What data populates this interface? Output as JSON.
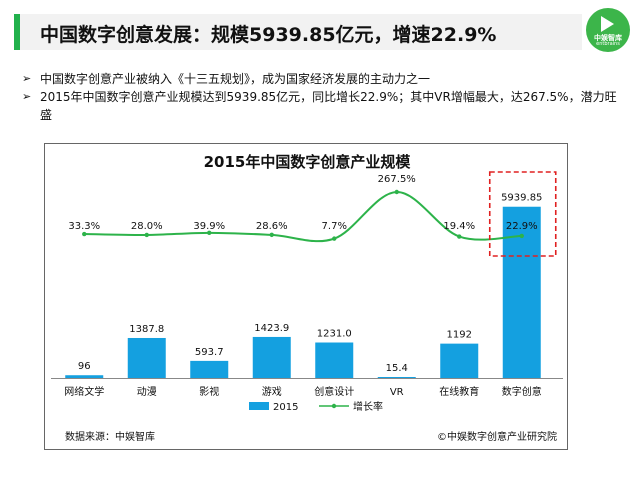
{
  "header": {
    "title": "中国数字创意发展：规模5939.85亿元，增速22.9%"
  },
  "logo": {
    "name": "中娱智库",
    "en": "entbrains",
    "icon": "play-icon"
  },
  "bullets": [
    {
      "icon": "arrow-right-icon",
      "text": "中国数字创意产业被纳入《十三五规划》，成为国家经济发展的主动力之一"
    },
    {
      "icon": "arrow-right-icon",
      "text": "2015年中国数字创意产业规模达到5939.85亿元，同比增长22.9%；其中VR增幅最大，达267.5%，潜力旺盛"
    }
  ],
  "chart_data": {
    "type": "bar",
    "title": "2015年中国数字创意产业规模",
    "categories": [
      "网络文学",
      "动漫",
      "影视",
      "游戏",
      "创意设计",
      "VR",
      "在线教育",
      "数字创意"
    ],
    "series": [
      {
        "name": "2015",
        "type": "bar",
        "values": [
          96,
          1387.8,
          593.7,
          1423.9,
          1231.0,
          15.4,
          1192,
          5939.85
        ],
        "labels": [
          "96",
          "1387.8",
          "593.7",
          "1423.9",
          "1231.0",
          "15.4",
          "1192",
          "5939.85"
        ]
      },
      {
        "name": "增长率",
        "type": "line",
        "values": [
          33.3,
          28.0,
          39.9,
          28.6,
          7.7,
          267.5,
          19.4,
          22.9
        ],
        "labels": [
          "33.3%",
          "28.0%",
          "39.9%",
          "28.6%",
          "7.7%",
          "267.5%",
          "19.4%",
          "22.9%"
        ]
      }
    ],
    "ylim": [
      0,
      6000
    ],
    "highlight": "数字创意",
    "source": "数据来源：中娱智库",
    "copyright": "©中娱数字创意产业研究院",
    "colors": {
      "bar": "#14a0e0",
      "line": "#2db34a",
      "highlight": "#e02020"
    }
  }
}
